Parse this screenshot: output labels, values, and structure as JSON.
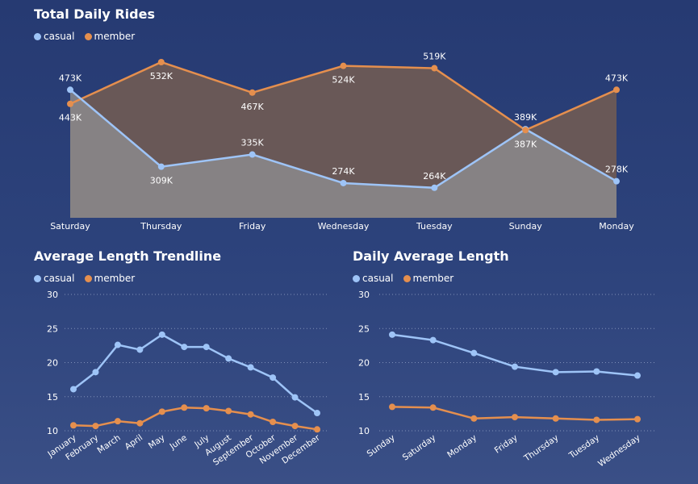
{
  "colors": {
    "casual": "#9ec4f7",
    "member": "#e58f4e",
    "grid": "#7f8fb8",
    "text": "#ffffff"
  },
  "legend": {
    "casual": "casual",
    "member": "member"
  },
  "panels": {
    "top": {
      "title": "Total Daily Rides"
    },
    "bottom_left": {
      "title": "Average Length Trendline"
    },
    "bottom_right": {
      "title": "Daily Average Length"
    }
  },
  "chart_data": [
    {
      "type": "area",
      "title": "Total Daily Rides",
      "categories": [
        "Saturday",
        "Thursday",
        "Friday",
        "Wednesday",
        "Tuesday",
        "Sunday",
        "Monday"
      ],
      "series": [
        {
          "name": "casual",
          "values": [
            473,
            309,
            335,
            274,
            264,
            389,
            278
          ],
          "labels": [
            "473K",
            "309K",
            "335K",
            "274K",
            "264K",
            "389K",
            "278K"
          ]
        },
        {
          "name": "member",
          "values": [
            443,
            532,
            467,
            524,
            519,
            387,
            473
          ],
          "labels": [
            "443K",
            "532K",
            "467K",
            "524K",
            "519K",
            "387K",
            "473K"
          ]
        }
      ],
      "ylim": [
        200,
        540
      ]
    },
    {
      "type": "line",
      "title": "Average Length Trendline",
      "categories": [
        "January",
        "February",
        "March",
        "April",
        "May",
        "June",
        "July",
        "August",
        "September",
        "October",
        "November",
        "December"
      ],
      "series": [
        {
          "name": "casual",
          "values": [
            16.1,
            18.6,
            22.6,
            21.9,
            24.1,
            22.3,
            22.3,
            20.6,
            19.3,
            17.8,
            14.9,
            12.6
          ]
        },
        {
          "name": "member",
          "values": [
            10.8,
            10.7,
            11.4,
            11.1,
            12.8,
            13.4,
            13.3,
            12.9,
            12.4,
            11.3,
            10.7,
            10.2
          ]
        }
      ],
      "yticks": [
        10,
        15,
        20,
        25,
        30
      ],
      "ylim": [
        10,
        30
      ]
    },
    {
      "type": "line",
      "title": "Daily Average Length",
      "categories": [
        "Sunday",
        "Saturday",
        "Monday",
        "Friday",
        "Thursday",
        "Tuesday",
        "Wednesday"
      ],
      "series": [
        {
          "name": "casual",
          "values": [
            24.1,
            23.3,
            21.4,
            19.4,
            18.6,
            18.7,
            18.1
          ]
        },
        {
          "name": "member",
          "values": [
            13.5,
            13.4,
            11.8,
            12.0,
            11.8,
            11.6,
            11.7
          ]
        }
      ],
      "yticks": [
        10,
        15,
        20,
        25,
        30
      ],
      "ylim": [
        10,
        30
      ]
    }
  ]
}
